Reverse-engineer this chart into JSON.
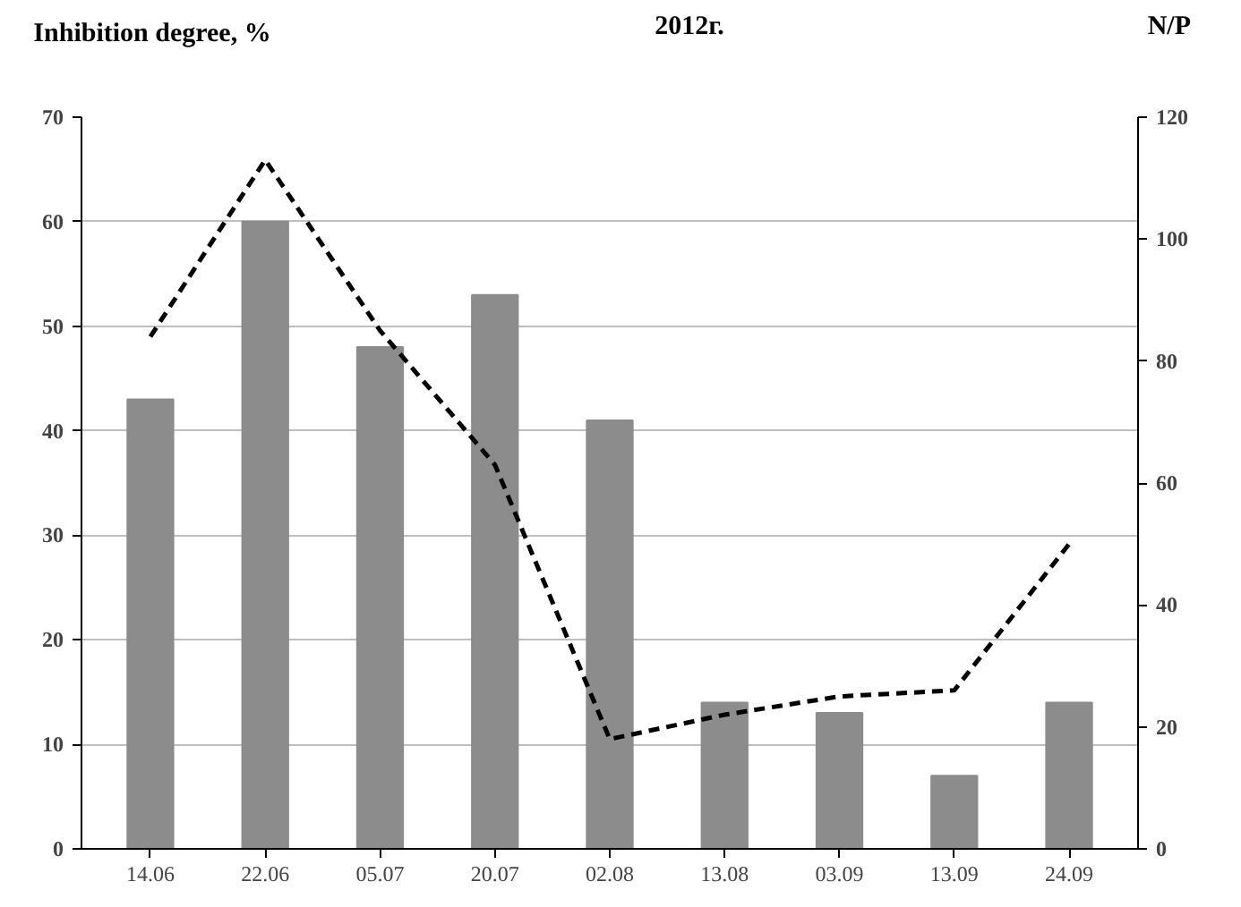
{
  "chart_data": {
    "type": "bar",
    "title": "2012г.",
    "ylabel": "Inhibition degree, %",
    "y2label": "N/P",
    "categories": [
      "14.06",
      "22.06",
      "05.07",
      "20.07",
      "02.08",
      "13.08",
      "03.09",
      "13.09",
      "24.09"
    ],
    "series": [
      {
        "color": "#8c8c8c",
        "values": [
          43,
          60,
          48,
          53,
          41,
          14,
          13,
          7,
          14
        ]
      },
      {
        "type": "line",
        "axis": "y2",
        "color": "#000000",
        "line_style": "dashed",
        "values": [
          84,
          113,
          85,
          63,
          18,
          22,
          25,
          26,
          50
        ]
      }
    ],
    "ylim": [
      0,
      70
    ],
    "yticks": [
      0,
      10,
      20,
      30,
      40,
      50,
      60,
      70
    ],
    "y2lim": [
      0,
      120
    ],
    "y2ticks": [
      0,
      20,
      40,
      60,
      80,
      100,
      120
    ],
    "grid": "y"
  }
}
